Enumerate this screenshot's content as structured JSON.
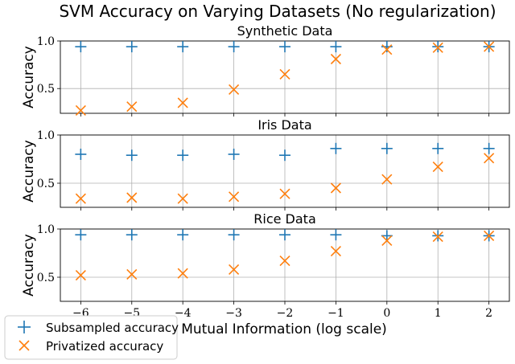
{
  "figure": {
    "suptitle": "SVM Accuracy on Varying Datasets (No regularization)",
    "xlabel": "Mutual Information (log scale)"
  },
  "legend": {
    "items": [
      {
        "label": "Subsampled accuracy",
        "marker": "plus",
        "color": "#1f77b4"
      },
      {
        "label": "Privatized accuracy",
        "marker": "x",
        "color": "#ff7f0e"
      }
    ],
    "placement": "bottom-left"
  },
  "chart_data": [
    {
      "type": "scatter",
      "title": "Synthetic Data",
      "ylabel": "Accuracy",
      "xlabel": "",
      "x": [
        -6,
        -5,
        -4,
        -3,
        -2,
        -1,
        0,
        1,
        2
      ],
      "xticks": [
        "−6",
        "−5",
        "−4",
        "−3",
        "−2",
        "−1",
        "0",
        "1",
        "2"
      ],
      "yticks": [
        "0.5",
        "1.0"
      ],
      "xlim": [
        -6.4,
        2.4
      ],
      "ylim": [
        0.24,
        1.0
      ],
      "grid": true,
      "series": [
        {
          "name": "Subsampled accuracy",
          "marker": "plus",
          "color": "#1f77b4",
          "values": [
            0.94,
            0.94,
            0.94,
            0.94,
            0.94,
            0.94,
            0.94,
            0.94,
            0.94
          ]
        },
        {
          "name": "Privatized accuracy",
          "marker": "x",
          "color": "#ff7f0e",
          "values": [
            0.27,
            0.31,
            0.35,
            0.49,
            0.65,
            0.81,
            0.91,
            0.93,
            0.94
          ]
        }
      ]
    },
    {
      "type": "scatter",
      "title": "Iris Data",
      "ylabel": "Accuracy",
      "xlabel": "",
      "x": [
        -6,
        -5,
        -4,
        -3,
        -2,
        -1,
        0,
        1,
        2
      ],
      "xticks": [
        "−6",
        "−5",
        "−4",
        "−3",
        "−2",
        "−1",
        "0",
        "1",
        "2"
      ],
      "yticks": [
        "0.5",
        "1.0"
      ],
      "xlim": [
        -6.4,
        2.4
      ],
      "ylim": [
        0.25,
        1.0
      ],
      "grid": true,
      "series": [
        {
          "name": "Subsampled accuracy",
          "marker": "plus",
          "color": "#1f77b4",
          "values": [
            0.8,
            0.79,
            0.79,
            0.8,
            0.79,
            0.86,
            0.86,
            0.86,
            0.86
          ]
        },
        {
          "name": "Privatized accuracy",
          "marker": "x",
          "color": "#ff7f0e",
          "values": [
            0.34,
            0.35,
            0.34,
            0.36,
            0.39,
            0.45,
            0.54,
            0.67,
            0.76
          ]
        }
      ]
    },
    {
      "type": "scatter",
      "title": "Rice Data",
      "ylabel": "Accuracy",
      "xlabel": "Mutual Information (log scale)",
      "x": [
        -6,
        -5,
        -4,
        -3,
        -2,
        -1,
        0,
        1,
        2
      ],
      "xticks": [
        "−6",
        "−5",
        "−4",
        "−3",
        "−2",
        "−1",
        "0",
        "1",
        "2"
      ],
      "yticks": [
        "0.5",
        "1.0"
      ],
      "xlim": [
        -6.4,
        2.4
      ],
      "ylim": [
        0.25,
        1.0
      ],
      "grid": true,
      "series": [
        {
          "name": "Subsampled accuracy",
          "marker": "plus",
          "color": "#1f77b4",
          "values": [
            0.94,
            0.94,
            0.94,
            0.94,
            0.94,
            0.94,
            0.93,
            0.93,
            0.93
          ]
        },
        {
          "name": "Privatized accuracy",
          "marker": "x",
          "color": "#ff7f0e",
          "values": [
            0.52,
            0.53,
            0.54,
            0.58,
            0.67,
            0.77,
            0.88,
            0.92,
            0.93
          ]
        }
      ]
    }
  ]
}
